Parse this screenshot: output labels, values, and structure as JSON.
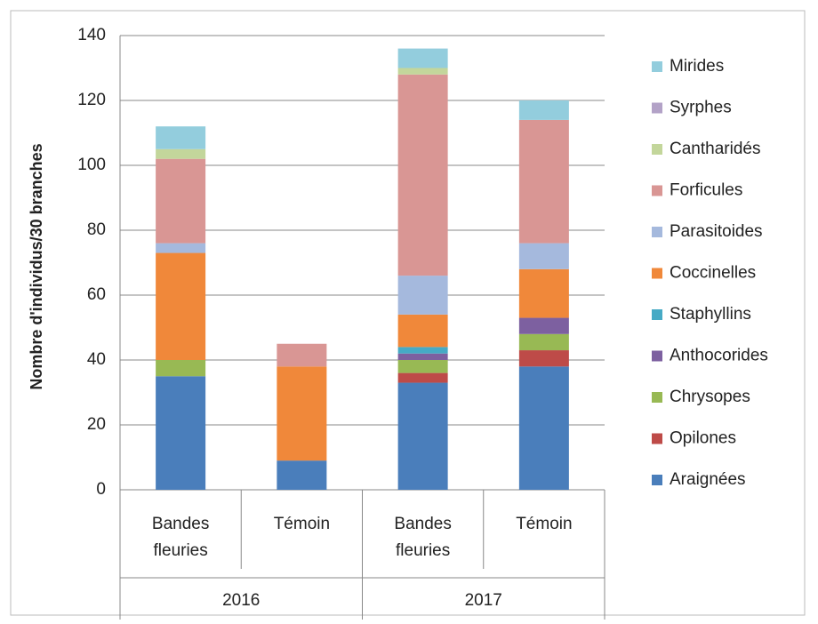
{
  "chart_data": {
    "type": "stacked_bar",
    "y_label": "Nombre d'individus/30 branches",
    "categories": [
      "Bandes fleuries",
      "Témoin",
      "Bandes fleuries",
      "Témoin"
    ],
    "groups": [
      {
        "label": "2016",
        "span": 2
      },
      {
        "label": "2017",
        "span": 2
      }
    ],
    "ylim": [
      0,
      140
    ],
    "yticks": [
      0,
      20,
      40,
      60,
      80,
      100,
      120,
      140
    ],
    "grid": true,
    "legend": "right",
    "series": [
      {
        "name": "Araignées",
        "color": "#4a7ebb",
        "values": [
          35,
          9,
          33,
          38
        ]
      },
      {
        "name": "Opilones",
        "color": "#be4b48",
        "values": [
          0,
          0,
          3,
          5
        ]
      },
      {
        "name": "Chrysopes",
        "color": "#98b954",
        "values": [
          5,
          0,
          4,
          5
        ]
      },
      {
        "name": "Anthocorides",
        "color": "#7d60a0",
        "values": [
          0,
          0,
          2,
          5
        ]
      },
      {
        "name": "Staphyllins",
        "color": "#46aac5",
        "values": [
          0,
          0,
          2,
          0
        ]
      },
      {
        "name": "Coccinelles",
        "color": "#f0883a",
        "values": [
          33,
          29,
          10,
          15
        ]
      },
      {
        "name": "Parasitoides",
        "color": "#a5b9dd",
        "values": [
          3,
          0,
          12,
          8
        ]
      },
      {
        "name": "Forficules",
        "color": "#d99694",
        "values": [
          26,
          7,
          62,
          38
        ]
      },
      {
        "name": "Cantharidés",
        "color": "#c3d69b",
        "values": [
          3,
          0,
          2,
          0
        ]
      },
      {
        "name": "Syrphes",
        "color": "#b3a2c7",
        "values": [
          0,
          0,
          0,
          0
        ]
      },
      {
        "name": "Mirides",
        "color": "#93cddd",
        "values": [
          7,
          0,
          6,
          6
        ]
      }
    ]
  }
}
